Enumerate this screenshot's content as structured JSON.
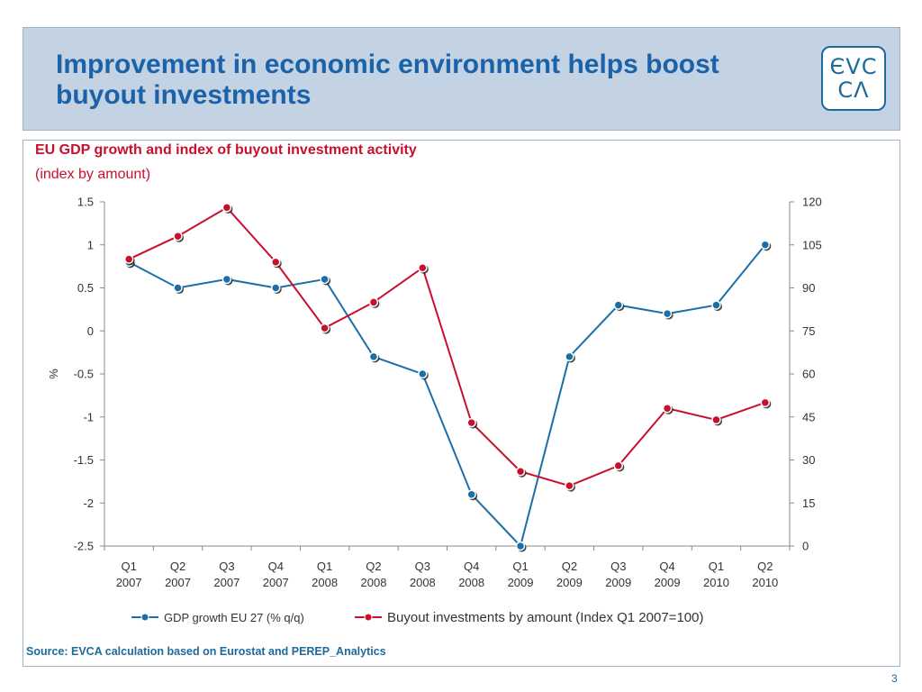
{
  "header": {
    "title": "Improvement in economic environment helps boost buyout investments",
    "logo_line1": "ЄVC",
    "logo_line2": "CΛ"
  },
  "page_number": "3",
  "source": "Source: EVCA calculation based on Eurostat and PEREP_Analytics",
  "colors": {
    "gdp": "#1b6fa8",
    "buyout": "#c8102e",
    "header_bg": "#c3d3e4",
    "title": "#1c62a8"
  },
  "chart_data": {
    "type": "line",
    "title": "EU GDP growth and index of buyout investment activity",
    "subtitle": "(index by amount)",
    "ylabel": "%",
    "categories": [
      [
        "Q1",
        "2007"
      ],
      [
        "Q2",
        "2007"
      ],
      [
        "Q3",
        "2007"
      ],
      [
        "Q4",
        "2007"
      ],
      [
        "Q1",
        "2008"
      ],
      [
        "Q2",
        "2008"
      ],
      [
        "Q3",
        "2008"
      ],
      [
        "Q4",
        "2008"
      ],
      [
        "Q1",
        "2009"
      ],
      [
        "Q2",
        "2009"
      ],
      [
        "Q3",
        "2009"
      ],
      [
        "Q4",
        "2009"
      ],
      [
        "Q1",
        "2010"
      ],
      [
        "Q2",
        "2010"
      ]
    ],
    "ylim": [
      -2.5,
      1.5
    ],
    "yticks": [
      "1.5",
      "1",
      "0.5",
      "0",
      "-0.5",
      "-1",
      "-1.5",
      "-2",
      "-2.5"
    ],
    "y2lim": [
      0,
      120
    ],
    "y2ticks": [
      "120",
      "105",
      "90",
      "75",
      "60",
      "45",
      "30",
      "15",
      "0"
    ],
    "grid": false,
    "legend_position": "bottom",
    "series": [
      {
        "name": "GDP growth EU 27 (% q/q)",
        "axis": "left",
        "values": [
          0.8,
          0.5,
          0.6,
          0.5,
          0.6,
          -0.3,
          -0.5,
          -1.9,
          -2.5,
          -0.3,
          0.3,
          0.2,
          0.3,
          1.0
        ]
      },
      {
        "name": "Buyout investments by amount (Index Q1 2007=100)",
        "axis": "right",
        "values": [
          100,
          108,
          118,
          99,
          76,
          85,
          97,
          43,
          26,
          21,
          28,
          48,
          44,
          50
        ]
      }
    ]
  }
}
